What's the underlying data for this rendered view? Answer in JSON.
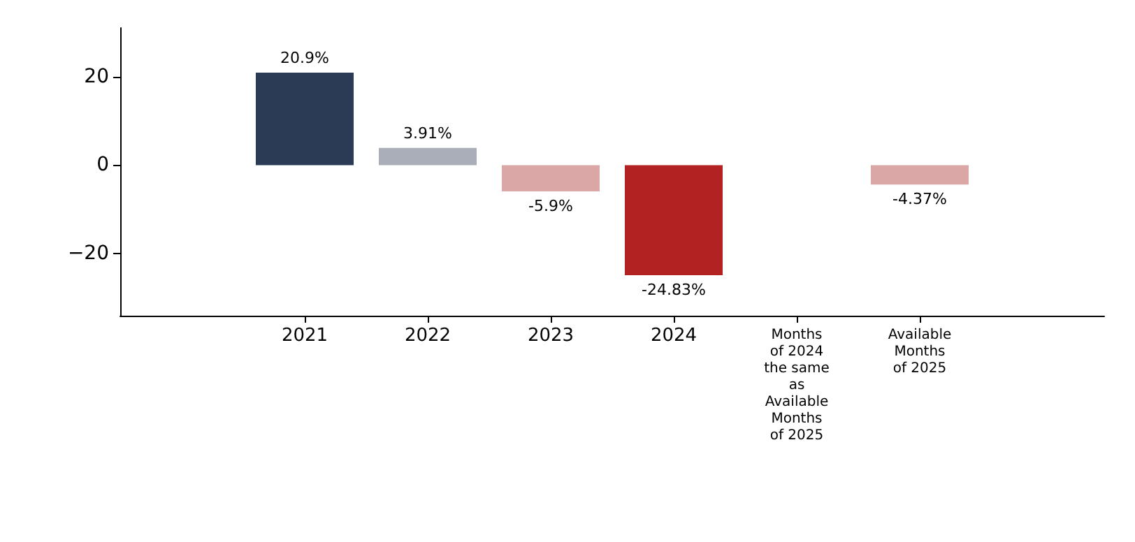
{
  "chart_data": {
    "type": "bar",
    "categories": [
      "2021",
      "2022",
      "2023",
      "2024",
      "Months of 2024 the same as Available Months of 2025",
      "Available Months of 2025"
    ],
    "values": [
      20.9,
      3.91,
      -5.9,
      -24.83,
      null,
      -4.37
    ],
    "colors": [
      "#2b3a55",
      "#a9aeb9",
      "#dba6a6",
      "#b22222",
      null,
      "#dba6a6"
    ],
    "value_labels": [
      "20.9%",
      "3.91%",
      "-5.9%",
      "-24.83%",
      null,
      "-4.37%"
    ],
    "ylim": [
      -34,
      31
    ],
    "yticks": [
      {
        "value": -20,
        "label": "−20"
      },
      0,
      20
    ],
    "grid": false
  }
}
